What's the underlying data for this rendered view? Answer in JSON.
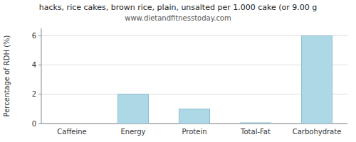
{
  "chart_data": {
    "type": "bar",
    "title": "hacks, rice cakes, brown rice, plain, unsalted per 1.000 cake (or 9.00 g",
    "subtitle": "www.dietandfitnesstoday.com",
    "categories": [
      "Caffeine",
      "Energy",
      "Protein",
      "Total-Fat",
      "Carbohydrate"
    ],
    "values": [
      0,
      2.0,
      1.0,
      0.05,
      6.0
    ],
    "color": "#add8e6",
    "ylabel": "Percentage of RDH (%)",
    "ylim": [
      0,
      6.5
    ],
    "yticks": [
      0,
      2,
      4,
      6
    ],
    "grid": true
  }
}
